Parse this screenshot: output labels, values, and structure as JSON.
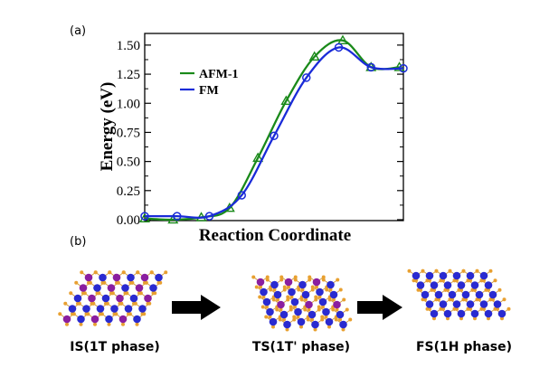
{
  "panel_a_label": "(a)",
  "panel_b_label": "(b)",
  "chart_data": {
    "type": "line",
    "title": "",
    "xlabel": "Reaction Coordinate",
    "ylabel": "Energy (eV)",
    "xlim": [
      0,
      12.8
    ],
    "ylim": [
      0,
      1.6
    ],
    "yticks": [
      0.0,
      0.25,
      0.5,
      0.75,
      1.0,
      1.25,
      1.5
    ],
    "ytick_labels": [
      "0.00",
      "0.25",
      "0.50",
      "0.75",
      "1.00",
      "1.25",
      "1.50"
    ],
    "grid": false,
    "legend": "upper-left",
    "series": [
      {
        "name": "AFM-1",
        "color": "#1a8a1a",
        "marker": "triangle",
        "x": [
          0,
          1.4,
          2.8,
          4.2,
          5.6,
          7,
          8.4,
          9.8,
          11.2,
          12.6
        ],
        "y": [
          0.01,
          0.0,
          0.02,
          0.1,
          0.53,
          1.02,
          1.4,
          1.54,
          1.31,
          1.31
        ]
      },
      {
        "name": "FM",
        "color": "#1a2bd8",
        "marker": "circle",
        "x": [
          0,
          1.6,
          3.2,
          4.8,
          6.4,
          8,
          9.6,
          11.2,
          12.8
        ],
        "y": [
          0.03,
          0.03,
          0.03,
          0.21,
          0.72,
          1.22,
          1.48,
          1.31,
          1.3
        ]
      }
    ]
  },
  "structures": {
    "stages": [
      {
        "caption": "IS(1T phase)",
        "phase": "1T",
        "purple_share": 0.35
      },
      {
        "caption": "TS(1T' phase)",
        "phase": "1T'",
        "purple_share": 0.2
      },
      {
        "caption": "FS(1H phase)",
        "phase": "1H",
        "purple_share": 0.0
      }
    ],
    "colors": {
      "metal": "#2a2ad0",
      "metal_alt": "#8a1ea0",
      "chalcogen": "#e8a030",
      "bond": "#d09a40"
    }
  }
}
